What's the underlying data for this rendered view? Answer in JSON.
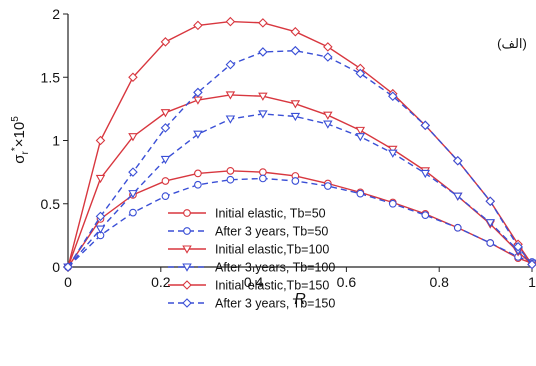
{
  "chart_data": {
    "type": "line",
    "y_label": [
      "σ",
      "r",
      "*",
      "×10",
      "5"
    ],
    "x_label": "R",
    "annotation": "(الف)",
    "x": [
      0,
      0.07,
      0.14,
      0.21,
      0.28,
      0.35,
      0.42,
      0.49,
      0.56,
      0.63,
      0.7,
      0.77,
      0.84,
      0.91,
      0.97,
      1.0
    ],
    "xlim": [
      0,
      1
    ],
    "xticks": [
      0,
      0.2,
      0.4,
      0.6,
      0.8,
      1
    ],
    "ylim": [
      0,
      2
    ],
    "yticks": [
      0,
      0.5,
      1,
      1.5,
      2
    ],
    "series": [
      {
        "name": "Initial elastic, Tb=50",
        "color": "#d8373f",
        "linestyle": "solid",
        "marker": "circle",
        "values": [
          0,
          0.38,
          0.57,
          0.68,
          0.74,
          0.76,
          0.75,
          0.72,
          0.66,
          0.59,
          0.51,
          0.42,
          0.31,
          0.19,
          0.07,
          0.03
        ]
      },
      {
        "name": "After 3 years, Tb=50",
        "color": "#3a4fd6",
        "linestyle": "dashed",
        "marker": "circle",
        "values": [
          0,
          0.25,
          0.43,
          0.56,
          0.65,
          0.69,
          0.7,
          0.68,
          0.64,
          0.58,
          0.5,
          0.41,
          0.31,
          0.19,
          0.08,
          0.04
        ]
      },
      {
        "name": "Initial elastic,Tb=100",
        "color": "#d8373f",
        "linestyle": "solid",
        "marker": "triangle",
        "values": [
          0,
          0.7,
          1.03,
          1.22,
          1.32,
          1.36,
          1.35,
          1.29,
          1.2,
          1.08,
          0.93,
          0.76,
          0.56,
          0.34,
          0.12,
          0.02
        ]
      },
      {
        "name": "After 3 years, Tb=100",
        "color": "#3a4fd6",
        "linestyle": "dashed",
        "marker": "triangle",
        "values": [
          0,
          0.3,
          0.58,
          0.85,
          1.05,
          1.17,
          1.21,
          1.19,
          1.13,
          1.03,
          0.9,
          0.74,
          0.56,
          0.35,
          0.13,
          0.03
        ]
      },
      {
        "name": "Initial elastic,Tb=150",
        "color": "#d8373f",
        "linestyle": "solid",
        "marker": "diamond",
        "values": [
          0,
          1.0,
          1.5,
          1.78,
          1.91,
          1.94,
          1.93,
          1.86,
          1.74,
          1.57,
          1.37,
          1.12,
          0.84,
          0.52,
          0.18,
          0.02
        ]
      },
      {
        "name": "After 3 years, Tb=150",
        "color": "#3a4fd6",
        "linestyle": "dashed",
        "marker": "diamond",
        "values": [
          0,
          0.4,
          0.75,
          1.1,
          1.38,
          1.6,
          1.7,
          1.71,
          1.66,
          1.53,
          1.35,
          1.12,
          0.84,
          0.52,
          0.16,
          0.02
        ]
      }
    ]
  }
}
